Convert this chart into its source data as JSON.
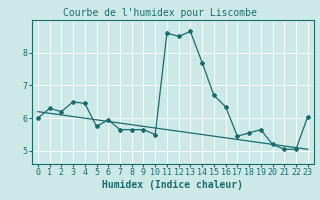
{
  "title": "Courbe de l'humidex pour Liscombe",
  "xlabel": "Humidex (Indice chaleur)",
  "ylabel": "",
  "bg_color": "#cce9e8",
  "grid_color": "#ffffff",
  "line_color": "#1a6b6b",
  "x": [
    0,
    1,
    2,
    3,
    4,
    5,
    6,
    7,
    8,
    9,
    10,
    11,
    12,
    13,
    14,
    15,
    16,
    17,
    18,
    19,
    20,
    21,
    22,
    23
  ],
  "y_curve": [
    6.0,
    6.3,
    6.2,
    6.5,
    6.45,
    5.75,
    5.95,
    5.65,
    5.65,
    5.65,
    5.5,
    8.6,
    8.5,
    8.65,
    7.7,
    6.7,
    6.35,
    5.45,
    5.55,
    5.65,
    5.2,
    5.05,
    5.05,
    6.05
  ],
  "y_trend": [
    6.2,
    6.15,
    6.1,
    6.05,
    6.0,
    5.95,
    5.9,
    5.85,
    5.8,
    5.75,
    5.7,
    5.65,
    5.6,
    5.55,
    5.5,
    5.45,
    5.4,
    5.35,
    5.3,
    5.25,
    5.2,
    5.15,
    5.1,
    5.05
  ],
  "ylim": [
    4.6,
    9.0
  ],
  "xlim": [
    -0.5,
    23.5
  ],
  "xticks": [
    0,
    1,
    2,
    3,
    4,
    5,
    6,
    7,
    8,
    9,
    10,
    11,
    12,
    13,
    14,
    15,
    16,
    17,
    18,
    19,
    20,
    21,
    22,
    23
  ],
  "yticks": [
    5,
    6,
    7,
    8
  ],
  "title_fontsize": 7,
  "label_fontsize": 7,
  "tick_fontsize": 6
}
